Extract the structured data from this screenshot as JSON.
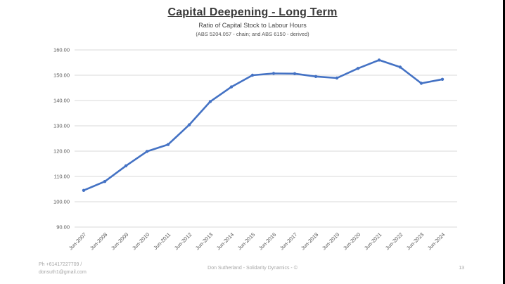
{
  "slide": {
    "title": "Capital Deepening - Long Term",
    "subtitle": "Ratio of Capital Stock to Labour Hours",
    "source_note": "(ABS 5204.057 - chain; and ABS 6150 - derived)",
    "footer": {
      "contact_line1": "Ph +61417227709 /",
      "contact_line2": "donsuth1@gmail.com",
      "credit": "Don Sutherland - Solidarity Dynamics - ©",
      "page_number": "13"
    }
  },
  "colors": {
    "line": "#4472C4",
    "gridline": "#D9D9D9",
    "tick_label": "#595959",
    "title_text": "#3A3A3A",
    "footer_text": "#A6A6A6"
  },
  "chart_data": {
    "type": "line",
    "title": "Capital Deepening - Long Term",
    "subtitle": "Ratio of Capital Stock to Labour Hours",
    "categories": [
      "Jun-2007",
      "Jun-2008",
      "Jun-2009",
      "Jun-2010",
      "Jun-2011",
      "Jun-2012",
      "Jun-2013",
      "Jun-2014",
      "Jun-2015",
      "Jun-2016",
      "Jun-2017",
      "Jun-2018",
      "Jun-2019",
      "Jun-2020",
      "Jun-2021",
      "Jun-2022",
      "Jun-2023",
      "Jun-2024"
    ],
    "values": [
      104.5,
      108.0,
      114.2,
      119.9,
      122.6,
      130.4,
      139.6,
      145.4,
      150.0,
      150.7,
      150.6,
      149.5,
      148.9,
      152.7,
      156.0,
      153.2,
      146.8,
      148.4
    ],
    "xlabel": "",
    "ylabel": "",
    "ylim": [
      90,
      160
    ],
    "y_tick_step": 10,
    "y_tick_labels": [
      "90.00",
      "100.00",
      "110.00",
      "120.00",
      "130.00",
      "140.00",
      "150.00",
      "160.00"
    ],
    "grid": true,
    "legend": "none",
    "marker": "point"
  }
}
